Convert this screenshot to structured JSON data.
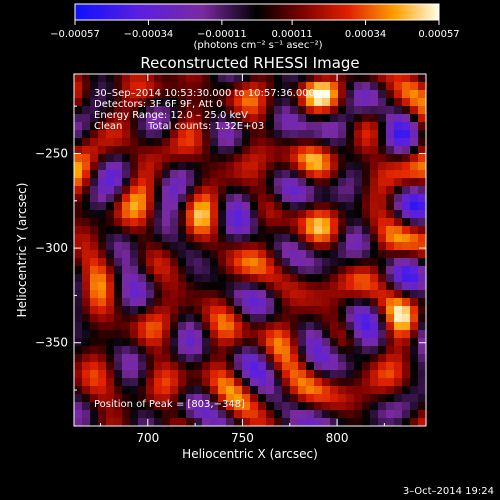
{
  "chart_data": {
    "type": "heatmap",
    "title": "Reconstructed RHESSI Image",
    "xlabel": "Heliocentric X (arcsec)",
    "ylabel": "Heliocentric Y (arcsec)",
    "xlim": [
      661,
      847
    ],
    "ylim": [
      -394,
      -208
    ],
    "x_ticks": [
      700,
      750,
      800
    ],
    "y_ticks": [
      -250,
      -300,
      -350
    ],
    "x_tick_labels": [
      "700",
      "750",
      "800"
    ],
    "y_tick_labels": [
      "−250",
      "−300",
      "−350"
    ],
    "colorbar": {
      "min": -0.00057,
      "max": 0.00057,
      "tick_values": [
        -0.00057,
        -0.00034,
        -0.00011,
        0.00011,
        0.00034,
        0.00057
      ],
      "tick_labels": [
        "−0.00057",
        "−0.00034",
        "−0.00011",
        "0.00011",
        "0.00034",
        "0.00057"
      ],
      "unit_label": "(photons cm⁻² s⁻¹ asec⁻²)"
    },
    "annotations": {
      "time_range": "30–Sep–2014 10:53:30.000 to 10:57:36.000",
      "detectors": "Detectors: 3F 6F 9F, Att 0",
      "energy_range": "Energy Range: 12.0 – 25.0 keV",
      "algorithm": "Clean",
      "total_counts": "Total counts: 1.32E+03",
      "peak": "Position of Peak = [803,−348]"
    },
    "peak": [
      803,
      -348
    ]
  },
  "footer": {
    "date": "3–Oct–2014 19:24"
  }
}
